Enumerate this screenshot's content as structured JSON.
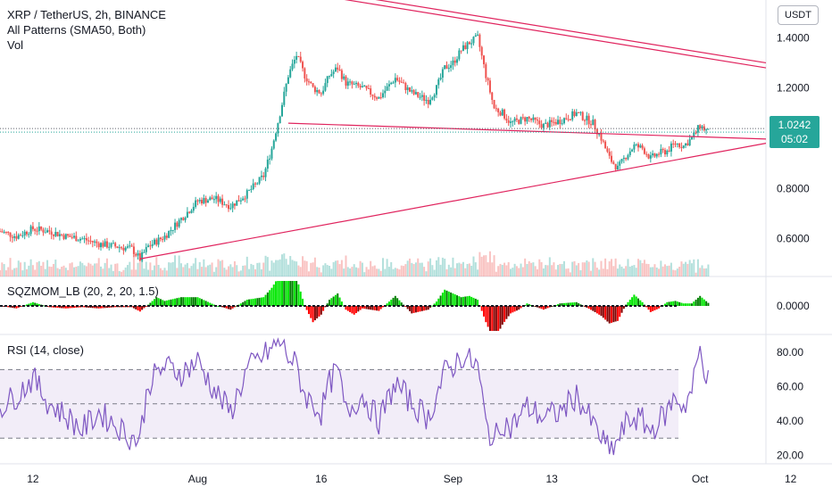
{
  "legend": {
    "symbol": "XRP / TetherUS, 2h, BINANCE",
    "indicator": "All Patterns (SMA50, Both)",
    "volume": "Vol"
  },
  "currency_button": "USDT",
  "last_price": {
    "value": "1.0242",
    "countdown": "05:02",
    "color": "#26a69a"
  },
  "panes": {
    "squeeze_title": "SQZMOM_LB (20, 2, 20, 1.5)",
    "rsi_title": "RSI (14, close)"
  },
  "colors": {
    "up": "#26a69a",
    "down": "#ef5350",
    "trendline": "#e0245e",
    "rsi_line": "#7e57c2",
    "rsi_band": "#ede7f6",
    "sqz_up_strong": "#00e600",
    "sqz_up_weak": "#008000",
    "sqz_down_strong": "#ff0000",
    "sqz_down_weak": "#800000"
  },
  "chart_data": [
    {
      "type": "candlestick",
      "title": "XRP / TetherUS, 2h, BINANCE",
      "y_ticks": [
        "1.4000",
        "1.2000",
        "0.8000",
        "0.6000"
      ],
      "y_tick_values": [
        1.4,
        1.2,
        0.8,
        0.6
      ],
      "x_ticks": [
        "12",
        "Aug",
        "16",
        "Sep",
        "13",
        "Oct",
        "12"
      ],
      "x_tick_days": [
        12,
        32,
        47,
        63,
        75,
        93,
        104
      ],
      "x_range_days": [
        8,
        101
      ],
      "ylim": [
        0.45,
        1.55
      ],
      "series": {
        "close_days": [
          8,
          10,
          12,
          14,
          16,
          18,
          20,
          22,
          24,
          25,
          26,
          28,
          30,
          32,
          34,
          36,
          38,
          40,
          41,
          42,
          43,
          44,
          45,
          46,
          47,
          48,
          49,
          50,
          52,
          54,
          56,
          58,
          60,
          61,
          62,
          63,
          64,
          65,
          66,
          67,
          68,
          69,
          70,
          72,
          74,
          76,
          78,
          80,
          81,
          82,
          83,
          84,
          85,
          86,
          87,
          88,
          89,
          90,
          91,
          92,
          93,
          94
        ],
        "close_values": [
          0.63,
          0.61,
          0.64,
          0.63,
          0.61,
          0.6,
          0.58,
          0.57,
          0.56,
          0.52,
          0.57,
          0.61,
          0.68,
          0.75,
          0.76,
          0.73,
          0.78,
          0.85,
          0.96,
          1.1,
          1.25,
          1.33,
          1.25,
          1.2,
          1.18,
          1.25,
          1.28,
          1.22,
          1.2,
          1.16,
          1.24,
          1.18,
          1.15,
          1.2,
          1.28,
          1.3,
          1.35,
          1.38,
          1.4,
          1.25,
          1.12,
          1.1,
          1.06,
          1.08,
          1.05,
          1.07,
          1.1,
          1.06,
          1.0,
          0.92,
          0.88,
          0.93,
          0.97,
          0.96,
          0.92,
          0.94,
          0.95,
          0.98,
          0.97,
          1.0,
          1.05,
          1.0242
        ]
      },
      "trendlines": [
        {
          "name": "upper-channel-1",
          "points": [
            [
              22,
              1.72
            ],
            [
              101,
              1.3
            ]
          ]
        },
        {
          "name": "upper-channel-2",
          "points": [
            [
              22,
              1.7
            ],
            [
              101,
              1.28
            ]
          ]
        },
        {
          "name": "pattern-upper",
          "points": [
            [
              43,
              1.06
            ],
            [
              101,
              0.997
            ]
          ]
        },
        {
          "name": "pattern-lower",
          "points": [
            [
              25,
              0.52
            ],
            [
              101,
              0.98
            ]
          ]
        }
      ]
    },
    {
      "type": "histogram",
      "title": "SQZMOM_LB (20, 2, 20, 1.5)",
      "y_ticks": [
        "0.0000"
      ],
      "y_tick_values": [
        0
      ]
    },
    {
      "type": "line",
      "title": "RSI (14, close)",
      "y_ticks": [
        "80.00",
        "60.00",
        "40.00",
        "20.00"
      ],
      "y_tick_values": [
        80,
        60,
        40,
        20
      ],
      "ylim": [
        15,
        90
      ],
      "bands": [
        30,
        50,
        70
      ],
      "series": {
        "x_days": [
          8,
          10,
          12,
          14,
          16,
          18,
          20,
          22,
          24,
          25,
          26,
          28,
          30,
          32,
          34,
          36,
          38,
          40,
          41,
          42,
          43,
          44,
          45,
          46,
          47,
          48,
          49,
          50,
          52,
          54,
          56,
          58,
          60,
          61,
          62,
          63,
          64,
          65,
          66,
          67,
          68,
          69,
          70,
          72,
          74,
          76,
          78,
          80,
          81,
          82,
          83,
          84,
          85,
          86,
          87,
          88,
          89,
          90,
          91,
          92,
          93,
          94
        ],
        "values": [
          48,
          55,
          65,
          50,
          43,
          35,
          45,
          38,
          30,
          30,
          62,
          72,
          68,
          75,
          58,
          45,
          70,
          78,
          82,
          86,
          78,
          72,
          55,
          50,
          45,
          62,
          70,
          45,
          55,
          40,
          62,
          50,
          42,
          55,
          68,
          72,
          78,
          75,
          72,
          38,
          28,
          40,
          36,
          48,
          42,
          45,
          55,
          38,
          30,
          22,
          28,
          38,
          42,
          40,
          34,
          40,
          45,
          55,
          48,
          58,
          82,
          63
        ]
      }
    }
  ]
}
